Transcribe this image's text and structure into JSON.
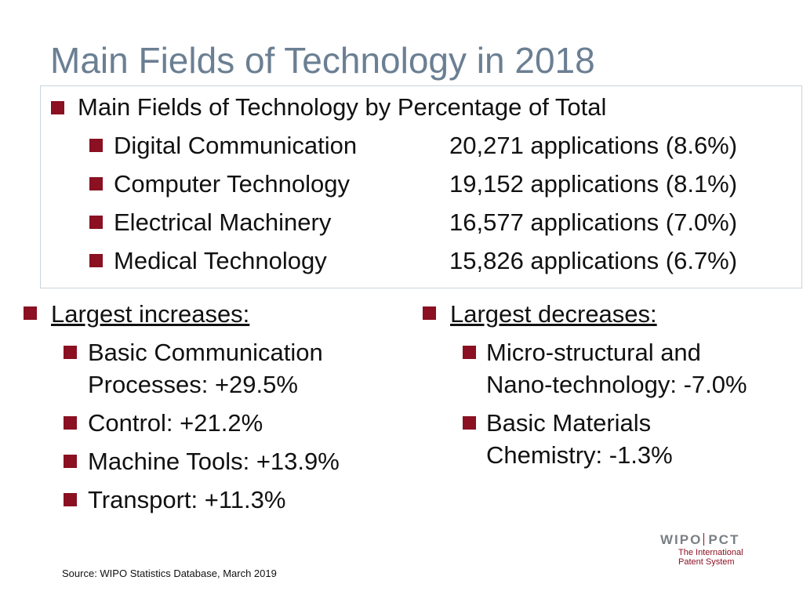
{
  "title": "Main Fields of Technology in 2018",
  "box": {
    "heading": "Main Fields of Technology by Percentage of Total",
    "rows": [
      {
        "field": "Digital Communication",
        "value": "20,271 applications (8.6%)"
      },
      {
        "field": "Computer Technology",
        "value": "19,152 applications (8.1%)"
      },
      {
        "field": "Electrical Machinery",
        "value": "16,577 applications (7.0%)"
      },
      {
        "field": "Medical Technology",
        "value": "15,826 applications (6.7%)"
      }
    ]
  },
  "increases": {
    "heading": "Largest increases:",
    "items": [
      {
        "line1": "Basic Communication",
        "line2": "Processes: +29.5%"
      },
      {
        "line1": "Control: +21.2%"
      },
      {
        "line1": "Machine Tools: +13.9%"
      },
      {
        "line1": "Transport: +11.3%"
      }
    ]
  },
  "decreases": {
    "heading": "Largest decreases:",
    "items": [
      {
        "line1": "Micro-structural and",
        "line2": "Nano-technology: -7.0%"
      },
      {
        "line1": "Basic Materials",
        "line2": "Chemistry: -1.3%"
      }
    ]
  },
  "source": "Source:  WIPO Statistics Database, March 2019",
  "logo": {
    "left": "WIPO",
    "right": "PCT",
    "sub1": "The International",
    "sub2": "Patent System"
  },
  "colors": {
    "title": "#6b7f93",
    "bullet": "#8a1022",
    "box_border": "#c9d4dc"
  }
}
